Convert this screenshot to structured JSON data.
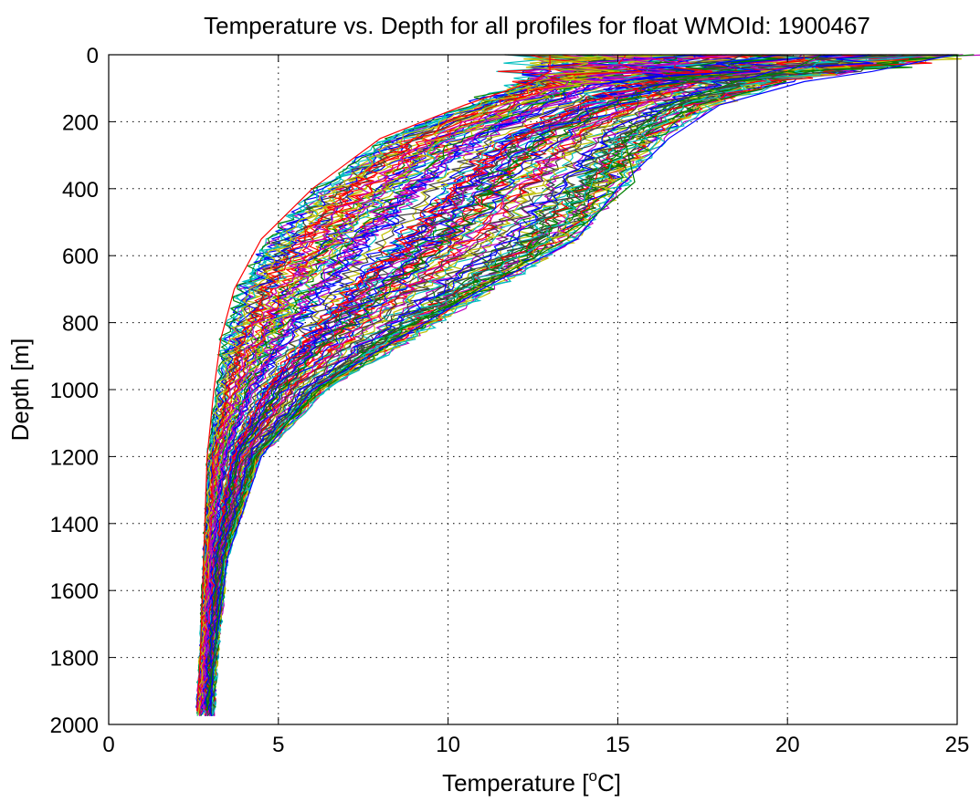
{
  "chart_data": {
    "type": "line",
    "title": "Temperature vs. Depth for all profiles for float WMOId: 1900467",
    "xlabel_main": "Temperature [",
    "xlabel_sup": "o",
    "xlabel_end": "C]",
    "ylabel": "Depth [m]",
    "xlim": [
      0,
      25
    ],
    "ylim": [
      0,
      2000
    ],
    "y_reversed": true,
    "grid": true,
    "xticks": [
      0,
      5,
      10,
      15,
      20,
      25
    ],
    "yticks": [
      0,
      200,
      400,
      600,
      800,
      1000,
      1200,
      1400,
      1600,
      1800,
      2000
    ],
    "xtick_labels": [
      "0",
      "5",
      "10",
      "15",
      "20",
      "25"
    ],
    "ytick_labels": [
      "0",
      "200",
      "400",
      "600",
      "800",
      "1000",
      "1200",
      "1400",
      "1600",
      "1800",
      "2000"
    ],
    "series_count": 120,
    "series_colors": [
      "#0000ff",
      "#008000",
      "#ff0000",
      "#00bfbf",
      "#bf00bf",
      "#bfbf00",
      "#404040"
    ],
    "profile_depths": [
      0,
      50,
      80,
      150,
      250,
      400,
      550,
      700,
      850,
      1000,
      1200,
      1500,
      1800,
      1960
    ],
    "envelope_warm": [
      25.0,
      22.0,
      20.0,
      18.0,
      16.5,
      15.3,
      14.0,
      11.5,
      9.0,
      6.5,
      4.5,
      3.5,
      3.2,
      3.1
    ],
    "envelope_cold": [
      12.5,
      12.5,
      12.0,
      10.5,
      8.0,
      6.0,
      4.5,
      3.7,
      3.3,
      3.1,
      2.9,
      2.8,
      2.7,
      2.6
    ],
    "series": [
      {
        "values": [
          [
            24.9,
            0
          ],
          [
            22.5,
            50
          ],
          [
            20.5,
            80
          ],
          [
            18.0,
            150
          ],
          [
            16.5,
            250
          ],
          [
            15.0,
            400
          ],
          [
            13.8,
            550
          ],
          [
            11.0,
            700
          ],
          [
            8.5,
            850
          ],
          [
            6.0,
            1000
          ],
          [
            4.5,
            1200
          ],
          [
            3.5,
            1500
          ],
          [
            3.1,
            1800
          ],
          [
            3.0,
            1960
          ]
        ]
      },
      {
        "values": [
          [
            21.0,
            0
          ],
          [
            20.0,
            50
          ],
          [
            18.5,
            80
          ],
          [
            16.5,
            150
          ],
          [
            15.2,
            250
          ],
          [
            15.5,
            380
          ],
          [
            13.5,
            550
          ],
          [
            10.0,
            750
          ],
          [
            8.0,
            850
          ],
          [
            6.2,
            1000
          ],
          [
            4.3,
            1200
          ],
          [
            3.4,
            1500
          ],
          [
            3.1,
            1800
          ],
          [
            2.9,
            1960
          ]
        ]
      },
      {
        "values": [
          [
            13.0,
            0
          ],
          [
            13.0,
            50
          ],
          [
            12.5,
            80
          ],
          [
            10.5,
            150
          ],
          [
            8.0,
            250
          ],
          [
            6.0,
            400
          ],
          [
            4.5,
            550
          ],
          [
            3.7,
            700
          ],
          [
            3.3,
            850
          ],
          [
            3.1,
            1000
          ],
          [
            2.9,
            1200
          ],
          [
            2.8,
            1500
          ],
          [
            2.7,
            1800
          ],
          [
            2.6,
            1960
          ]
        ]
      }
    ]
  }
}
